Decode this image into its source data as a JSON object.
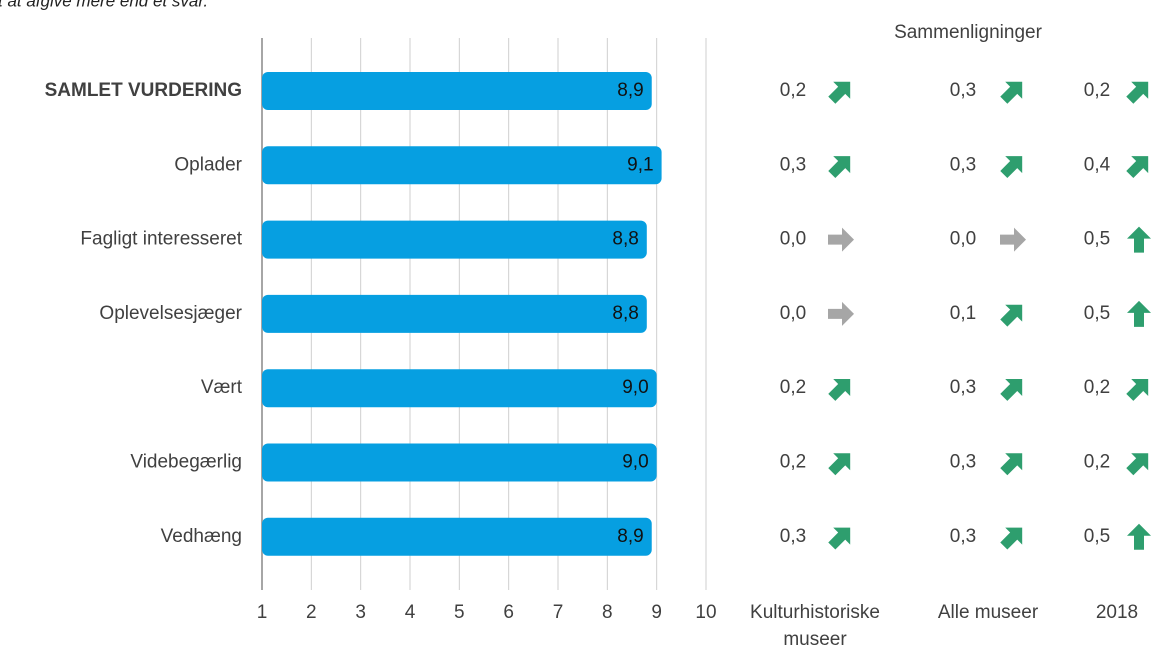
{
  "chart_data": {
    "type": "bar",
    "orientation": "horizontal",
    "subtitle": "t at afgive mere end ét svar.",
    "categories": [
      "SAMLET VURDERING",
      "Oplader",
      "Fagligt interesseret",
      "Oplevelsesjæger",
      "Vært",
      "Videbegærlig",
      "Vedhæng"
    ],
    "bold_category": 0,
    "values": [
      8.9,
      9.1,
      8.8,
      8.8,
      9.0,
      9.0,
      8.9
    ],
    "value_labels": [
      "8,9",
      "9,1",
      "8,8",
      "8,8",
      "9,0",
      "9,0",
      "8,9"
    ],
    "color": "#069fe1",
    "xlim": [
      1,
      10
    ],
    "xticks": [
      1,
      2,
      3,
      4,
      5,
      6,
      7,
      8,
      9,
      10
    ],
    "grid": true,
    "comparison_title": "Sammenligninger",
    "trend_colors": {
      "up": "#2e9e6e",
      "up-right": "#2e9e6e",
      "right": "#a6a6a6"
    },
    "comparisons": [
      {
        "name": "Kulturhistoriske museer",
        "values": [
          0.2,
          0.3,
          0.0,
          0.0,
          0.2,
          0.2,
          0.3
        ],
        "value_labels": [
          "0,2",
          "0,3",
          "0,0",
          "0,0",
          "0,2",
          "0,2",
          "0,3"
        ],
        "trends": [
          "up-right",
          "up-right",
          "right",
          "right",
          "up-right",
          "up-right",
          "up-right"
        ]
      },
      {
        "name": "Alle museer",
        "values": [
          0.3,
          0.3,
          0.0,
          0.1,
          0.3,
          0.3,
          0.3
        ],
        "value_labels": [
          "0,3",
          "0,3",
          "0,0",
          "0,1",
          "0,3",
          "0,3",
          "0,3"
        ],
        "trends": [
          "up-right",
          "up-right",
          "right",
          "up-right",
          "up-right",
          "up-right",
          "up-right"
        ]
      },
      {
        "name": "2018",
        "values": [
          0.2,
          0.4,
          0.5,
          0.5,
          0.2,
          0.2,
          0.5
        ],
        "value_labels": [
          "0,2",
          "0,4",
          "0,5",
          "0,5",
          "0,2",
          "0,2",
          "0,5"
        ],
        "trends": [
          "up-right",
          "up-right",
          "up",
          "up",
          "up-right",
          "up-right",
          "up"
        ]
      }
    ]
  }
}
